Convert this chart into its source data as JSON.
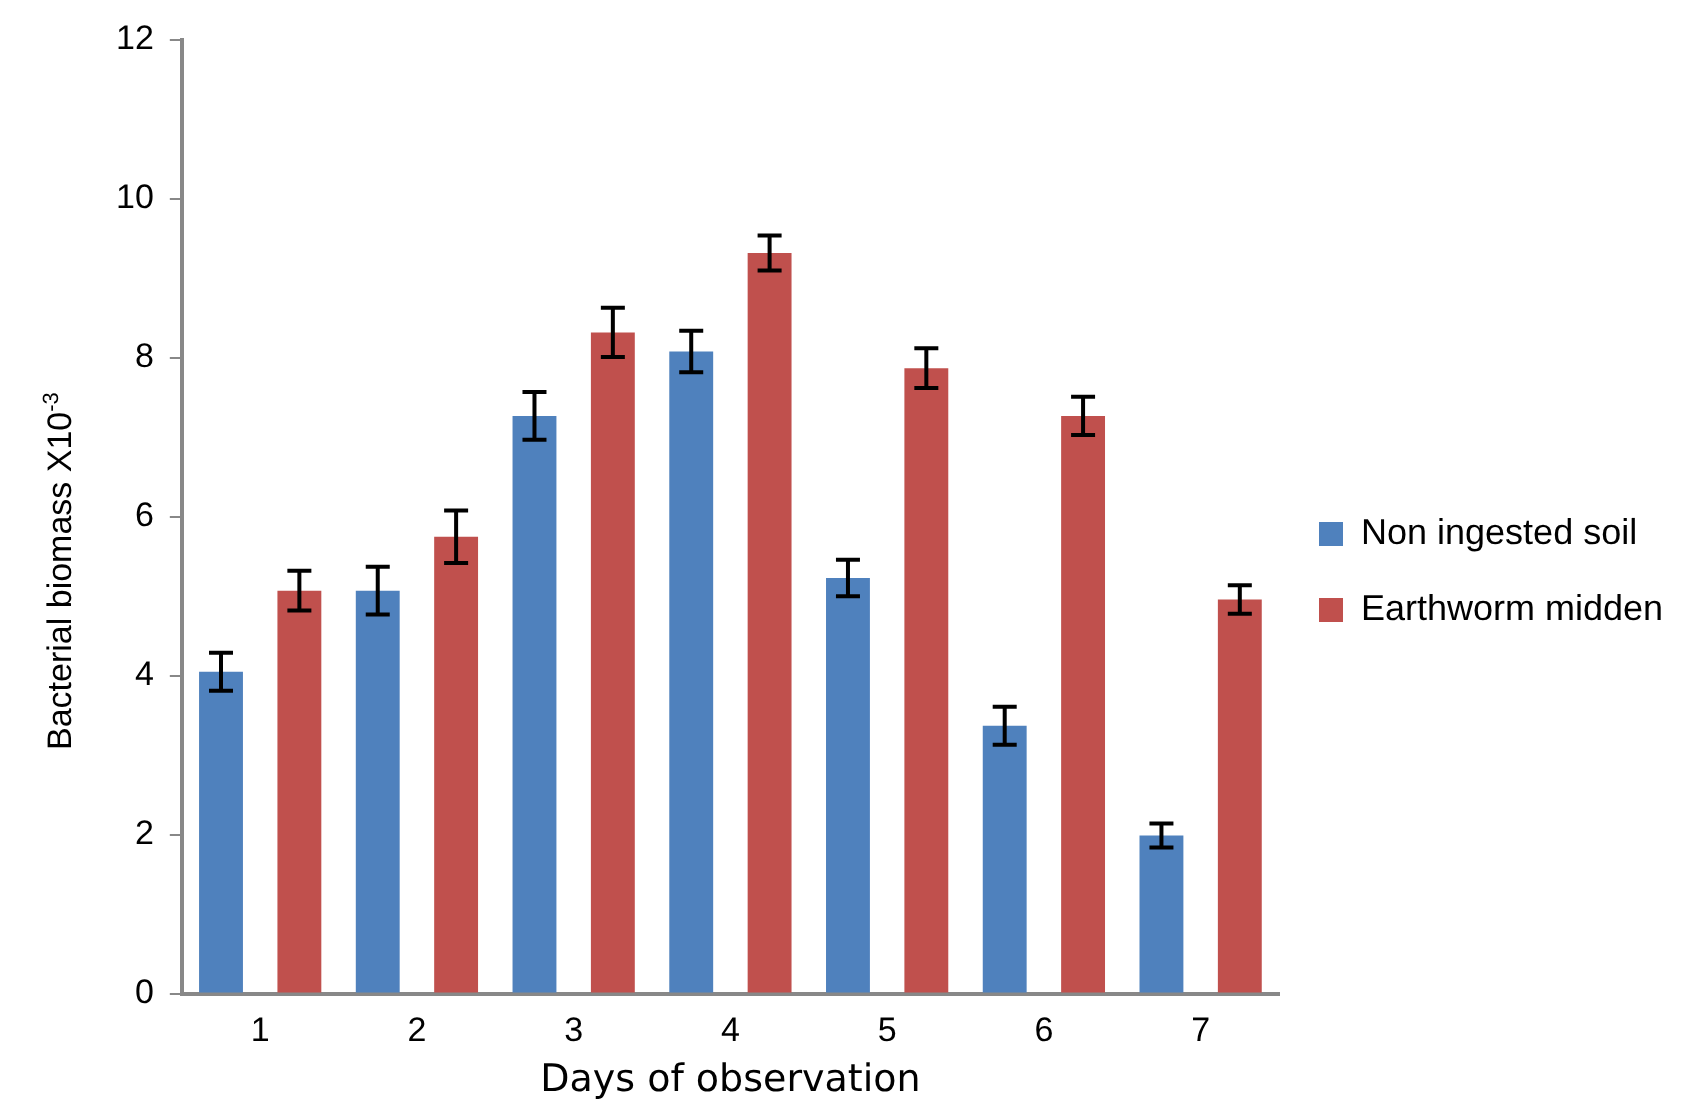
{
  "chart_data": {
    "type": "bar",
    "xlabel": "Days of observation",
    "ylabel": "Bacterial biomass X10$^{-3}$",
    "categories": [
      "1",
      "2",
      "3",
      "4",
      "5",
      "6",
      "7"
    ],
    "series": [
      {
        "name": "Non ingested soil",
        "color": "#4f81bd",
        "values": [
          4.05,
          5.07,
          7.27,
          8.08,
          5.23,
          3.37,
          1.99
        ],
        "errors": [
          0.24,
          0.3,
          0.3,
          0.26,
          0.23,
          0.24,
          0.15
        ]
      },
      {
        "name": "Earthworm midden",
        "color": "#c0504d",
        "values": [
          5.07,
          5.75,
          8.32,
          9.32,
          7.87,
          7.27,
          4.96
        ],
        "errors": [
          0.25,
          0.33,
          0.31,
          0.22,
          0.25,
          0.24,
          0.18
        ]
      }
    ],
    "ylim": [
      0,
      12
    ],
    "yticks": [
      0,
      2,
      4,
      6,
      8,
      10,
      12
    ],
    "grid": false,
    "legend": "right"
  }
}
